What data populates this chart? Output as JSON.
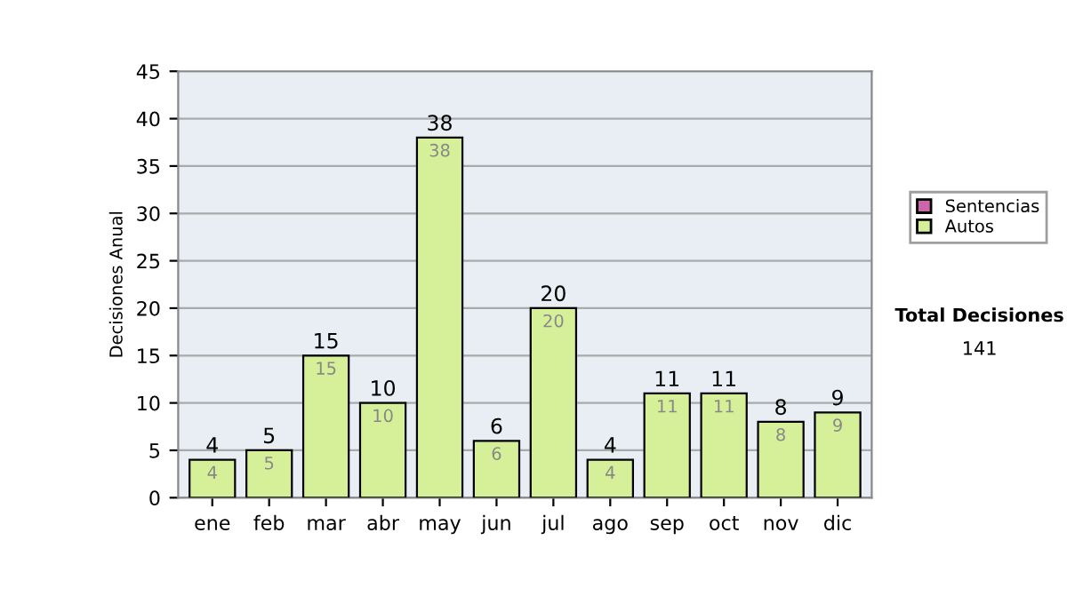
{
  "chart_data": {
    "type": "bar",
    "stacked": true,
    "ylabel": "Decisiones Anual",
    "categories": [
      "ene",
      "feb",
      "mar",
      "abr",
      "may",
      "jun",
      "jul",
      "ago",
      "sep",
      "oct",
      "nov",
      "dic"
    ],
    "series": [
      {
        "name": "Sentencias",
        "color": "#cc66aa",
        "values": [
          null,
          null,
          null,
          null,
          null,
          null,
          null,
          null,
          null,
          null,
          null,
          null
        ]
      },
      {
        "name": "Autos",
        "color": "#d6f09a",
        "values": [
          4,
          5,
          15,
          10,
          38,
          6,
          20,
          4,
          11,
          11,
          8,
          9
        ]
      }
    ],
    "data_labels": true,
    "totals": [
      "4",
      "5",
      "15",
      "10",
      "38",
      "6",
      "20",
      "4",
      "11",
      "11",
      "8",
      "9"
    ],
    "ylim": [
      0,
      45
    ],
    "yticks": [
      0,
      5,
      10,
      15,
      20,
      25,
      30,
      35,
      40,
      45
    ],
    "grid": "y",
    "legend": "right",
    "annotations": [
      "Total Decisiones",
      "141"
    ]
  }
}
